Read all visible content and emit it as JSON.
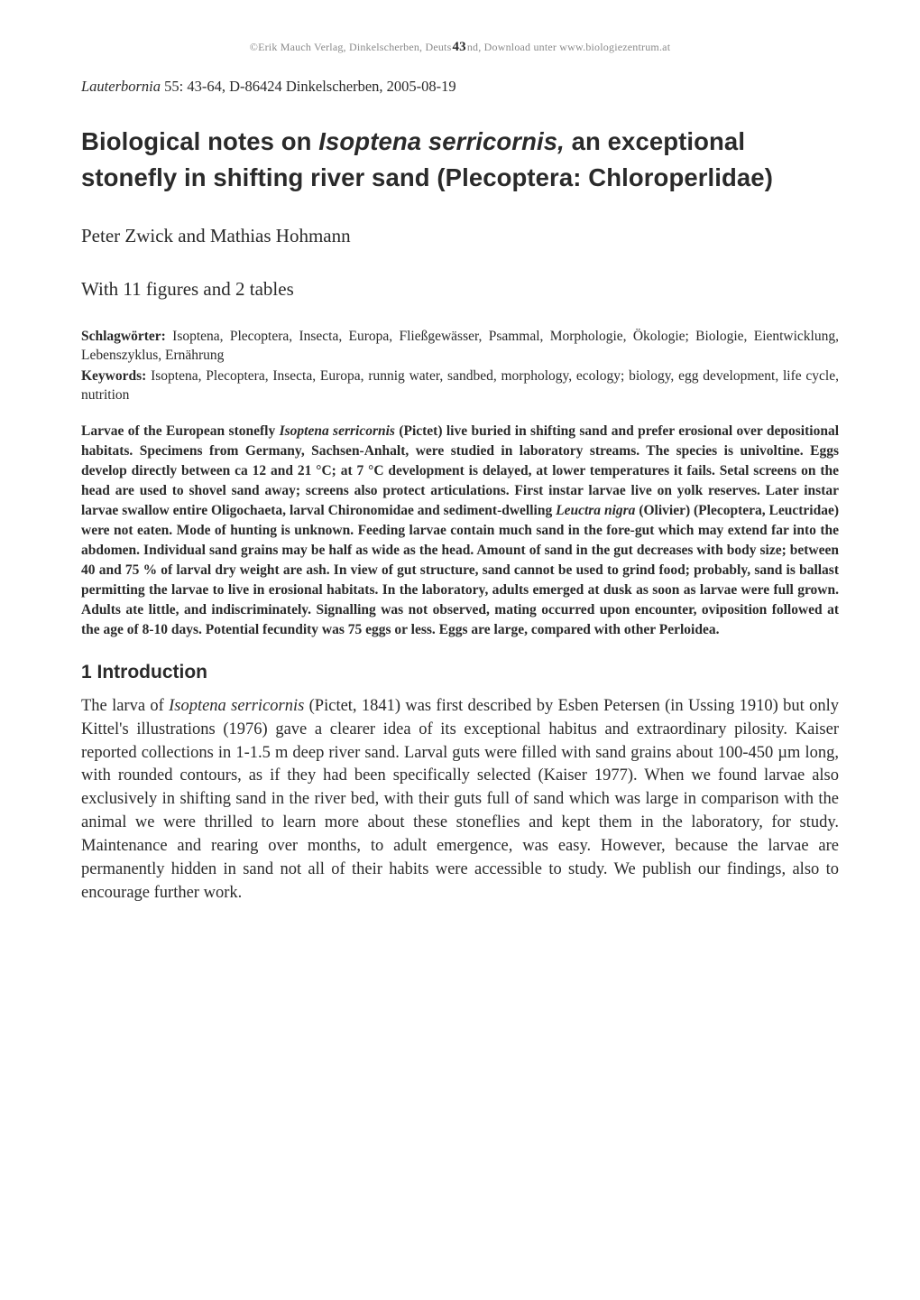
{
  "top_line": {
    "left": "©Erik Mauch Verlag, Dinkelscherben, Deuts",
    "pagenum": "43",
    "right": "nd, Download unter www.biologiezentrum.at"
  },
  "citation": {
    "journal": "Lauterbornia",
    "rest": " 55: 43-64, D-86424 Dinkelscherben, 2005-08-19"
  },
  "title": {
    "part1": "Biological notes on ",
    "species": "Isoptena serricornis,",
    "part2": " an exceptional stonefly in shifting river sand (Plecoptera: Chloroperlidae)"
  },
  "authors": "Peter Zwick and Mathias Hohmann",
  "figures_note": "With 11 figures and 2 tables",
  "schlagworter": {
    "label": "Schlagwörter:",
    "text": " Isoptena, Plecoptera, Insecta, Europa, Fließgewässer, Psammal, Morphologie, Ökologie; Biologie, Eientwicklung, Lebenszyklus, Ernährung"
  },
  "keywords": {
    "label": "Keywords:",
    "text": " Isoptena, Plecoptera, Insecta, Europa, runnig water, sandbed, morphology, ecology; biology, egg development, life cycle, nutrition"
  },
  "abstract": {
    "p1a": "Larvae of the European stonefly ",
    "sp1": "Isoptena serricornis",
    "p1b": " (Pictet) live buried in shifting sand and prefer erosional over depositional habitats. Specimens from Germany, Sachsen-Anhalt, were studied in laboratory streams. The species is univoltine. Eggs develop directly between ca 12 and 21 °C; at 7 °C development is delayed, at lower temperatures it fails. Setal screens on the head are used to shovel sand away; screens also protect articulations. First instar larvae live on yolk reserves. Later instar larvae swallow entire Oligochaeta, larval Chironomidae and sediment-dwelling ",
    "sp2": "Leuctra nigra",
    "p1c": " (Olivier) (Plecoptera, Leuctridae) were not eaten. Mode of hunting is unknown. Feeding larvae contain much sand in the fore-gut which may extend far into the abdomen. Individual sand grains may be half as wide as the head. Amount of sand in the gut decreases with body size; between 40 and 75 % of larval dry weight are ash. In view of gut structure, sand cannot be used to grind food; probably, sand is ballast permitting the larvae to live in erosional habitats. In the laboratory, adults emerged at dusk as soon as larvae were full grown. Adults ate little, and indiscriminately. Signalling was not observed, mating occurred upon encounter, oviposition followed at the age of  8-10 days. Potential fecundity was 75 eggs or less. Eggs are large, compared with other Perloidea."
  },
  "section1": {
    "heading": "1  Introduction",
    "p1a": "The larva of ",
    "sp1": "Isoptena serricornis",
    "p1b": " (Pictet, 1841) was first described by Esben Petersen (in Ussing 1910) but only Kittel's illustrations (1976) gave a clearer idea of its exceptional habitus and extraordinary pilosity. Kaiser reported collections in 1-1.5 m deep river sand. Larval guts were filled with sand grains about 100-450 µm long, with rounded contours, as if they had been specifically selected (Kaiser 1977). When we found larvae also exclusively in shifting sand in the river bed, with their guts full of sand which was large in comparison with the animal we were thrilled to learn more about these stoneflies and kept them in the laboratory, for study. Maintenance and rearing over months, to adult emergence, was easy. However, because the larvae are permanently hidden in sand not all of their habits were accessible to study. We publish our findings, also to encourage further work."
  }
}
